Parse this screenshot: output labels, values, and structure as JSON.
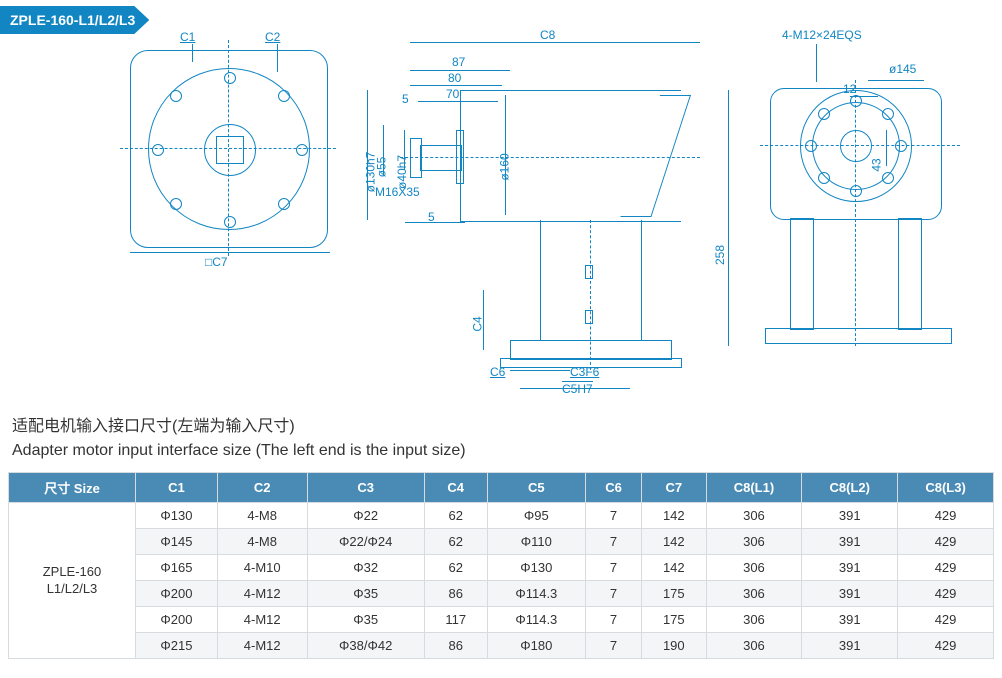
{
  "tag": "ZPLE-160-L1/L2/L3",
  "title_cn": "适配电机输入接口尺寸(左端为输入尺寸)",
  "title_en": "Adapter motor input interface size (The left end is the input size)",
  "drawing": {
    "labels": {
      "C1": "C1",
      "C2": "C2",
      "C7": "□C7",
      "C8": "C8",
      "thread_top": "4-M12×24EQS",
      "d145": "ø145",
      "d160": "ø160",
      "d130h7": "ø130h7",
      "d55": "ø55",
      "d40h7": "ø40h7",
      "m16": "M16X35",
      "dim87": "87",
      "dim80": "80",
      "dim70": "70",
      "dim5a": "5",
      "dim5b": "5",
      "dim12": "12",
      "dim43": "43",
      "dim258": "258",
      "C4": "C4",
      "C6": "C6",
      "C3F6": "C3F6",
      "C5H7": "C5H7"
    },
    "colors": {
      "line": "#1186c3",
      "bg": "#ffffff",
      "text": "#1186c3",
      "black": "#000000"
    }
  },
  "table": {
    "headers": [
      "尺寸 Size",
      "C1",
      "C2",
      "C3",
      "C4",
      "C5",
      "C6",
      "C7",
      "C8(L1)",
      "C8(L2)",
      "C8(L3)"
    ],
    "model": "ZPLE-160\nL1/L2/L3",
    "rows": [
      [
        "Φ130",
        "4-M8",
        "Φ22",
        "62",
        "Φ95",
        "7",
        "142",
        "306",
        "391",
        "429"
      ],
      [
        "Φ145",
        "4-M8",
        "Φ22/Φ24",
        "62",
        "Φ110",
        "7",
        "142",
        "306",
        "391",
        "429"
      ],
      [
        "Φ165",
        "4-M10",
        "Φ32",
        "62",
        "Φ130",
        "7",
        "142",
        "306",
        "391",
        "429"
      ],
      [
        "Φ200",
        "4-M12",
        "Φ35",
        "86",
        "Φ114.3",
        "7",
        "175",
        "306",
        "391",
        "429"
      ],
      [
        "Φ200",
        "4-M12",
        "Φ35",
        "117",
        "Φ114.3",
        "7",
        "175",
        "306",
        "391",
        "429"
      ],
      [
        "Φ215",
        "4-M12",
        "Φ38/Φ42",
        "86",
        "Φ180",
        "7",
        "190",
        "306",
        "391",
        "429"
      ]
    ]
  }
}
